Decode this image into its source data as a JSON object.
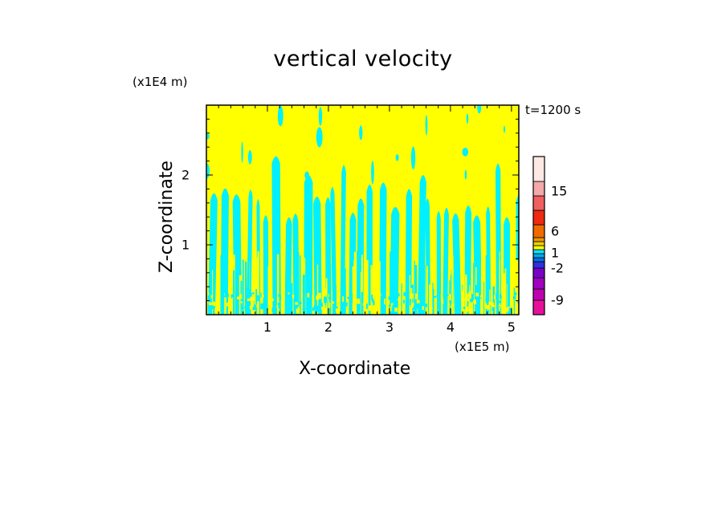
{
  "chart_data": {
    "type": "heatmap",
    "title": "vertical velocity",
    "xlabel": "X-coordinate",
    "ylabel": "Z-coordinate",
    "x_unit_label": "(x1E5 m)",
    "z_unit_label": "(x1E4 m)",
    "time_label": "t=1200 s",
    "xlim": [
      0,
      5.12
    ],
    "ylim": [
      0,
      3.0
    ],
    "x_ticks": [
      1,
      2,
      3,
      4,
      5
    ],
    "x_tick_labels": [
      "1",
      "2",
      "3",
      "4",
      "5"
    ],
    "y_ticks": [
      1,
      2
    ],
    "y_tick_labels": [
      "1",
      "2"
    ],
    "background_fill": "#ffff00",
    "pattern": "vertical plumes; cyan (weak negative/downdraft) columns rising from surface into yellow field; top of plumes near z=1.6-2.0",
    "colorbar": {
      "levels": [
        {
          "color": "#e8109a"
        },
        {
          "color": "#c000b0"
        },
        {
          "color": "#a000c0"
        },
        {
          "color": "#7a00c8"
        },
        {
          "color": "#3030e0"
        },
        {
          "color": "#0070e8"
        },
        {
          "color": "#00a8f0"
        },
        {
          "color": "#00e8ff"
        },
        {
          "color": "#ffff00"
        },
        {
          "color": "#f0d000"
        },
        {
          "color": "#f09800"
        },
        {
          "color": "#f06a00"
        },
        {
          "color": "#ee2a10"
        },
        {
          "color": "#f06060"
        },
        {
          "color": "#f4a8a8"
        },
        {
          "color": "#fde8e4"
        }
      ],
      "tick_labels": [
        "-9",
        "-2",
        "1",
        "6",
        "15"
      ]
    }
  },
  "plume_color": "#00f0ff",
  "field_color": "#ffff00"
}
